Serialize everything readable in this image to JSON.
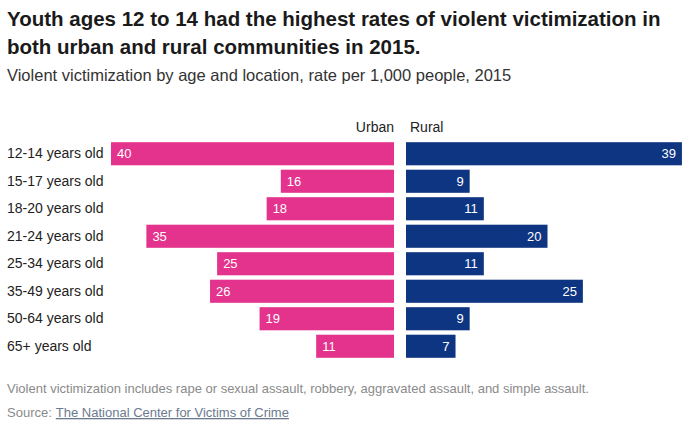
{
  "chart_data": {
    "type": "bar",
    "orientation": "horizontal",
    "title": "Youth ages 12 to 14 had the highest rates of violent victimization in both urban and rural communities in 2015.",
    "subtitle": "Violent victimization by age and location, rate per 1,000 people, 2015",
    "categories": [
      "12-14 years old",
      "15-17 years old",
      "18-20 years old",
      "21-24 years old",
      "25-34 years old",
      "35-49 years old",
      "50-64 years old",
      "65+ years old"
    ],
    "series": [
      {
        "name": "Urban",
        "color": "#e3338c",
        "values": [
          40,
          16,
          18,
          35,
          25,
          26,
          19,
          11
        ]
      },
      {
        "name": "Rural",
        "color": "#0e3581",
        "values": [
          39,
          9,
          11,
          20,
          11,
          25,
          9,
          7
        ]
      }
    ],
    "xlim": [
      0,
      40
    ],
    "data_labels": true,
    "tick_labels": "y",
    "grid": false,
    "note": "Violent victimization includes rape or sexual assault, robbery, aggravated assault, and simple assault.",
    "source_label": "Source:",
    "source": "The National Center for Victims of Crime"
  }
}
